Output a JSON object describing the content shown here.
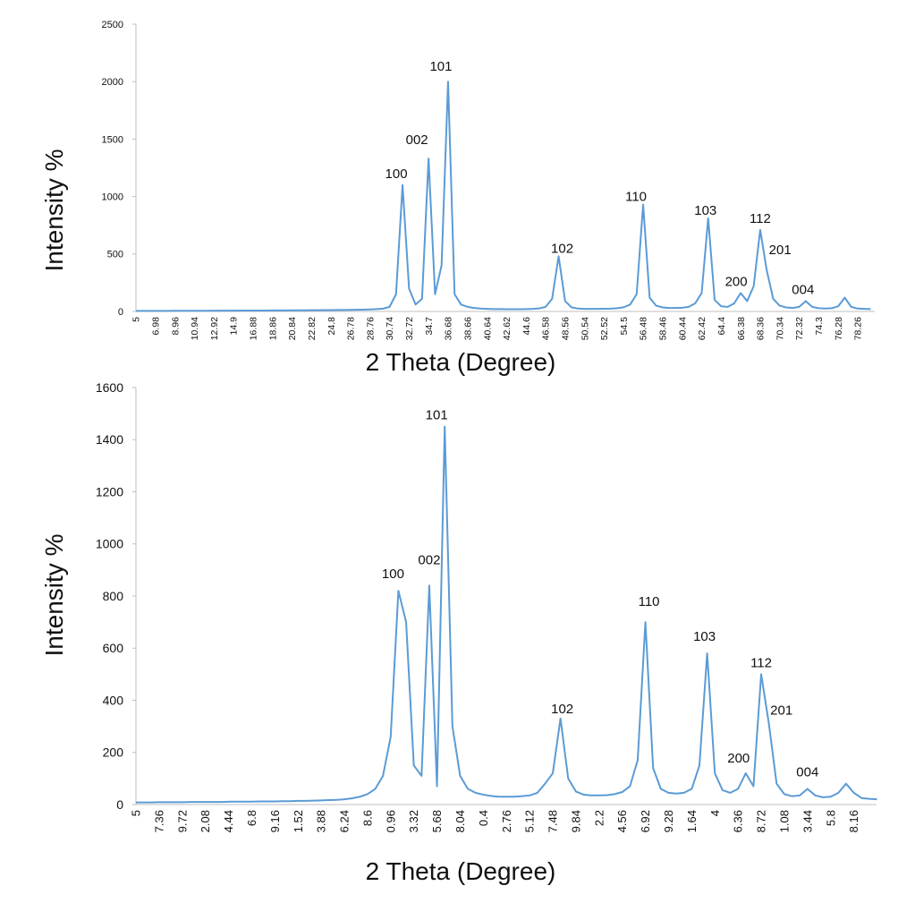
{
  "chart_data": [
    {
      "type": "line",
      "x_label": "2 Theta (Degree)",
      "y_label": "Intensity %",
      "color": "#5b9bd5",
      "ylim": [
        0,
        2500
      ],
      "yticks": [
        0,
        500,
        1000,
        1500,
        2000,
        2500
      ],
      "categories": [
        "5",
        null,
        null,
        "6.98",
        null,
        null,
        "8.96",
        null,
        null,
        "10.94",
        null,
        null,
        "12.92",
        null,
        null,
        "14.9",
        null,
        null,
        "16.88",
        null,
        null,
        "18.86",
        null,
        null,
        "20.84",
        null,
        null,
        "22.82",
        null,
        null,
        "24.8",
        null,
        null,
        "26.78",
        null,
        null,
        "28.76",
        null,
        null,
        "30.74",
        null,
        null,
        "32.72",
        null,
        null,
        "34.7",
        null,
        null,
        "36.68",
        null,
        null,
        "38.66",
        null,
        null,
        "40.64",
        null,
        null,
        "42.62",
        null,
        null,
        "44.6",
        null,
        null,
        "46.58",
        null,
        null,
        "48.56",
        null,
        null,
        "50.54",
        null,
        null,
        "52.52",
        null,
        null,
        "54.5",
        null,
        null,
        "56.48",
        null,
        null,
        "58.46",
        null,
        null,
        "60.44",
        null,
        null,
        "62.42",
        null,
        null,
        "64.4",
        null,
        null,
        "66.38",
        null,
        null,
        "68.36",
        null,
        null,
        "70.34",
        null,
        null,
        "72.32",
        null,
        null,
        "74.3",
        null,
        null,
        "76.28",
        null,
        null,
        "78.26",
        null,
        null
      ],
      "values": [
        5,
        5,
        5,
        5,
        5,
        5,
        6,
        6,
        6,
        6,
        6,
        6,
        7,
        7,
        7,
        7,
        8,
        8,
        8,
        8,
        8,
        9,
        9,
        9,
        10,
        10,
        10,
        11,
        11,
        12,
        12,
        13,
        13,
        14,
        15,
        16,
        18,
        20,
        24,
        40,
        150,
        1100,
        200,
        60,
        110,
        1330,
        150,
        400,
        2000,
        150,
        60,
        40,
        30,
        25,
        22,
        20,
        20,
        19,
        19,
        19,
        20,
        22,
        26,
        40,
        110,
        480,
        90,
        35,
        25,
        22,
        22,
        22,
        23,
        24,
        28,
        36,
        60,
        150,
        930,
        120,
        50,
        35,
        30,
        30,
        32,
        40,
        70,
        160,
        810,
        100,
        45,
        40,
        70,
        160,
        90,
        220,
        710,
        360,
        110,
        50,
        35,
        30,
        40,
        90,
        40,
        28,
        25,
        28,
        45,
        120,
        40,
        25,
        22,
        20
      ],
      "annotations": [
        "100",
        "002",
        "101",
        "102",
        "110",
        "103",
        "200",
        "112",
        "201",
        "004"
      ]
    },
    {
      "type": "line",
      "x_label": "2 Theta (Degree)",
      "y_label": "Intensity %",
      "color": "#5b9bd5",
      "ylim": [
        0,
        1600
      ],
      "yticks": [
        0,
        200,
        400,
        600,
        800,
        1000,
        1200,
        1400,
        1600
      ],
      "categories": [
        "5",
        null,
        null,
        "7.36",
        null,
        null,
        "9.72",
        null,
        null,
        "2.08",
        null,
        null,
        "4.44",
        null,
        null,
        "6.8",
        null,
        null,
        "9.16",
        null,
        null,
        "1.52",
        null,
        null,
        "3.88",
        null,
        null,
        "6.24",
        null,
        null,
        "8.6",
        null,
        null,
        "0.96",
        null,
        null,
        "3.32",
        null,
        null,
        "5.68",
        null,
        null,
        "8.04",
        null,
        null,
        "0.4",
        null,
        null,
        "2.76",
        null,
        null,
        "5.12",
        null,
        null,
        "7.48",
        null,
        null,
        "9.84",
        null,
        null,
        "2.2",
        null,
        null,
        "4.56",
        null,
        null,
        "6.92",
        null,
        null,
        "9.28",
        null,
        null,
        "1.64",
        null,
        null,
        "4",
        null,
        null,
        "6.36",
        null,
        null,
        "8.72",
        null,
        null,
        "1.08",
        null,
        null,
        "3.44",
        null,
        null,
        "5.8",
        null,
        null,
        "8.16",
        null,
        null,
        null
      ],
      "values": [
        8,
        8,
        8,
        9,
        9,
        9,
        9,
        10,
        10,
        10,
        10,
        10,
        11,
        11,
        11,
        11,
        12,
        12,
        12,
        13,
        13,
        14,
        14,
        15,
        16,
        17,
        18,
        20,
        24,
        30,
        40,
        60,
        110,
        260,
        820,
        700,
        150,
        110,
        840,
        70,
        1450,
        300,
        110,
        60,
        45,
        38,
        33,
        30,
        30,
        30,
        32,
        35,
        45,
        80,
        120,
        330,
        100,
        50,
        38,
        35,
        35,
        36,
        40,
        48,
        70,
        170,
        700,
        140,
        60,
        45,
        42,
        45,
        60,
        150,
        580,
        120,
        55,
        45,
        60,
        120,
        70,
        500,
        310,
        80,
        40,
        32,
        35,
        60,
        35,
        28,
        30,
        45,
        80,
        45,
        25,
        22,
        20
      ],
      "annotations": [
        "100",
        "002",
        "101",
        "102",
        "110",
        "103",
        "200",
        "112",
        "201",
        "004"
      ]
    }
  ]
}
